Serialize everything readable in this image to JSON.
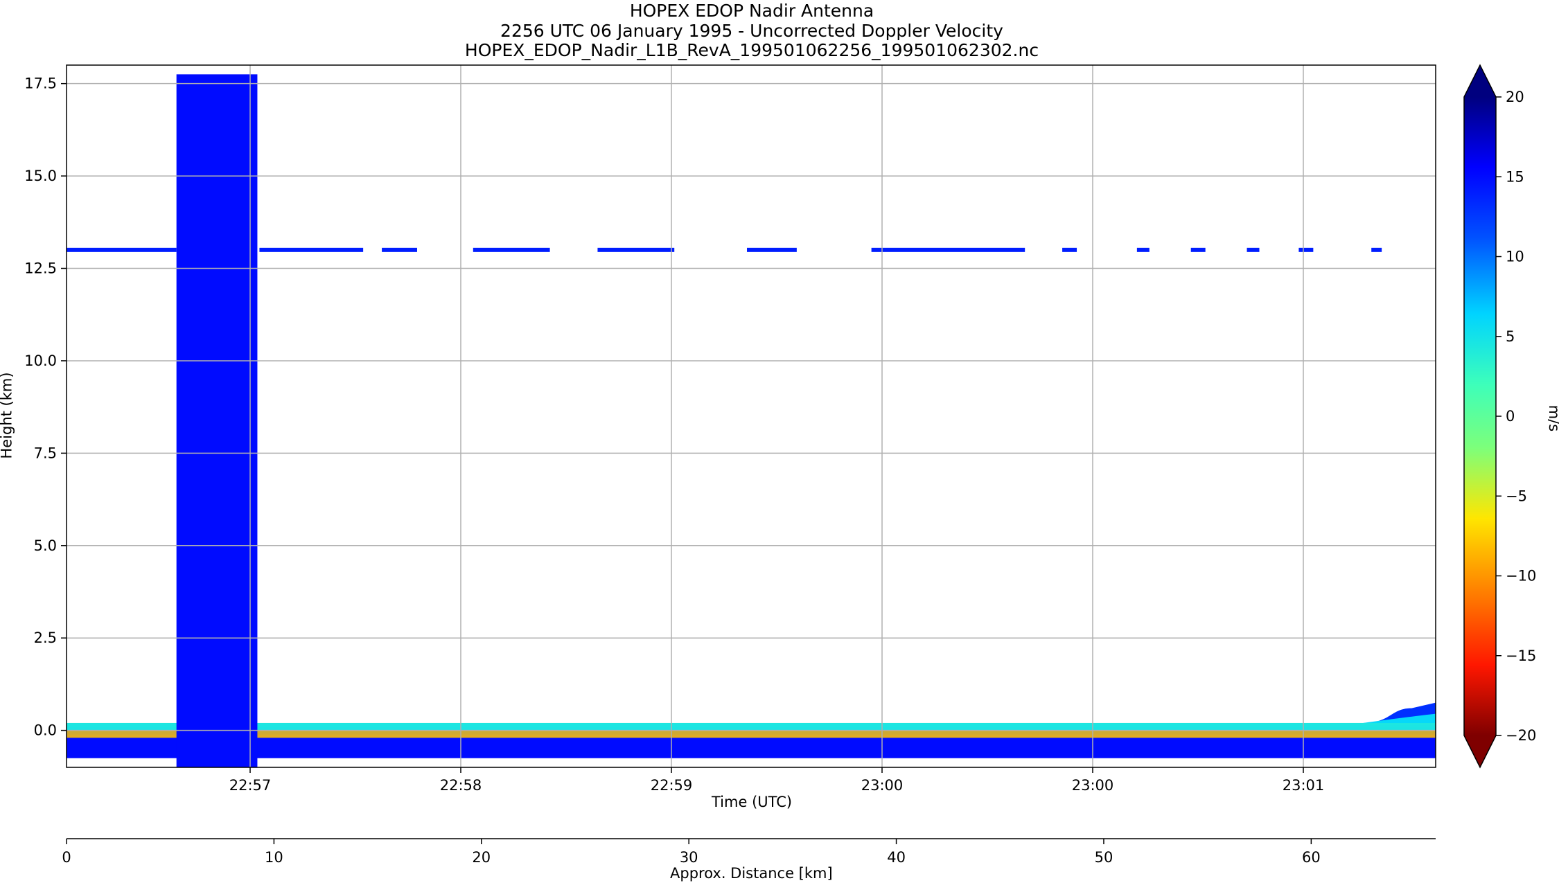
{
  "chart_data": {
    "type": "heatmap",
    "title_lines": [
      "HOPEX EDOP Nadir Antenna",
      "2256 UTC 06 January 1995 - Uncorrected Doppler Velocity",
      "HOPEX_EDOP_Nadir_L1B_RevA_199501062256_199501062302.nc"
    ],
    "xlabel": "Time (UTC)",
    "ylabel": "Height (km)",
    "x2label": "Approx. Distance [km]",
    "x_tick_labels": [
      "22:57",
      "22:58",
      "22:59",
      "23:00",
      "23:00",
      "23:01"
    ],
    "y_tick_labels": [
      "0.0",
      "2.5",
      "5.0",
      "7.5",
      "10.0",
      "12.5",
      "15.0",
      "17.5"
    ],
    "y_ticks": [
      0.0,
      2.5,
      5.0,
      7.5,
      10.0,
      12.5,
      15.0,
      17.5
    ],
    "ylim": [
      -1.0,
      18.0
    ],
    "distance_ticks": [
      0,
      10,
      20,
      30,
      40,
      50,
      60
    ],
    "distance_range_km": [
      0,
      66
    ],
    "grid": true,
    "colorbar": {
      "label": "m/s",
      "ticks": [
        20,
        15,
        10,
        5,
        0,
        -5,
        -10,
        -15,
        -20
      ],
      "tick_labels": [
        "20",
        "15",
        "10",
        "5",
        "0",
        "−5",
        "−10",
        "−15",
        "−20"
      ],
      "range": [
        -20,
        20
      ],
      "extend": "both",
      "colormap": "jet_r"
    },
    "features": {
      "block": {
        "distance_km": [
          5.3,
          9.2
        ],
        "height_km": [
          -1.0,
          17.75
        ],
        "velocity_ms": 15
      },
      "upper_layer": {
        "height_km": 13.0,
        "velocity_ms": 14,
        "segments_distance_km": [
          [
            0,
            5.3
          ],
          [
            9.3,
            14.3
          ],
          [
            15.2,
            16.9
          ],
          [
            19.6,
            23.3
          ],
          [
            25.6,
            29.3
          ],
          [
            32.8,
            35.2
          ],
          [
            38.8,
            46.2
          ],
          [
            48.0,
            48.7
          ],
          [
            51.6,
            52.2
          ],
          [
            54.2,
            54.9
          ],
          [
            56.9,
            57.5
          ],
          [
            59.4,
            60.1
          ],
          [
            62.9,
            63.4
          ]
        ]
      },
      "surface_band": {
        "top_layer": {
          "height_km": [
            0.0,
            0.2
          ],
          "velocity_ms": 5
        },
        "middle_layer": {
          "height_km": [
            -0.2,
            0.0
          ],
          "velocity_ms": -10
        },
        "bottom_layer": {
          "height_km": [
            -0.75,
            -0.2
          ],
          "velocity_ms": 15
        },
        "right_edge_rise_km": {
          "distance_km": [
            62.5,
            66
          ],
          "height_top_km": 0.75
        }
      }
    }
  }
}
